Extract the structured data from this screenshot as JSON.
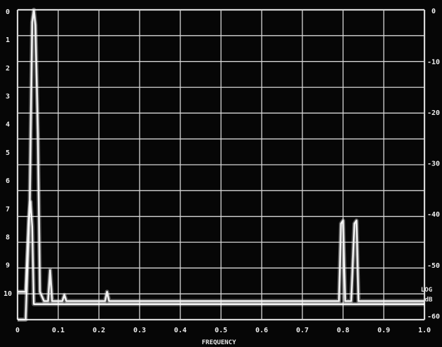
{
  "chart_data": {
    "type": "line",
    "title": "",
    "xlabel": "FREQUENCY",
    "ylabel": "",
    "x_ticks": [
      "0",
      "0.1",
      "0.2",
      "0.3",
      "0.4",
      "0.5",
      "0.6",
      "0.7",
      "0.8",
      "0.9",
      "1.0"
    ],
    "y_left_ticks": [
      "0",
      "1",
      "2",
      "3",
      "4",
      "5",
      "6",
      "7",
      "8",
      "9",
      "10"
    ],
    "y_right_ticks": [
      "0",
      "-10",
      "-20",
      "-30",
      "-40",
      "-50",
      "-60"
    ],
    "right_axis_label": [
      "LOG",
      "dB"
    ],
    "xlim": [
      0,
      1.0
    ],
    "ylim_left": [
      0,
      10
    ],
    "ylim_right_db": [
      -60,
      0
    ],
    "grid": true,
    "series": [
      {
        "color": "#f2f2f2",
        "points": [
          [
            0.0,
            0.9
          ],
          [
            0.02,
            0.9
          ],
          [
            0.03,
            3.8
          ],
          [
            0.036,
            9.6
          ],
          [
            0.04,
            10.0
          ],
          [
            0.044,
            9.5
          ],
          [
            0.05,
            6.0
          ],
          [
            0.055,
            0.9
          ],
          [
            0.065,
            0.6
          ],
          [
            0.075,
            0.6
          ],
          [
            0.08,
            1.6
          ],
          [
            0.085,
            0.6
          ],
          [
            0.1,
            0.6
          ],
          [
            0.11,
            0.6
          ],
          [
            0.115,
            0.8
          ],
          [
            0.12,
            0.6
          ],
          [
            0.14,
            0.6
          ],
          [
            0.16,
            0.6
          ],
          [
            0.2,
            0.6
          ],
          [
            0.215,
            0.6
          ],
          [
            0.22,
            0.9
          ],
          [
            0.225,
            0.6
          ],
          [
            0.3,
            0.6
          ],
          [
            0.4,
            0.6
          ],
          [
            0.5,
            0.6
          ],
          [
            0.6,
            0.6
          ],
          [
            0.7,
            0.6
          ],
          [
            0.79,
            0.6
          ],
          [
            0.795,
            3.1
          ],
          [
            0.8,
            3.2
          ],
          [
            0.805,
            0.6
          ],
          [
            0.82,
            0.6
          ],
          [
            0.828,
            3.1
          ],
          [
            0.833,
            3.2
          ],
          [
            0.838,
            0.6
          ],
          [
            0.9,
            0.6
          ],
          [
            1.0,
            0.6
          ]
        ]
      },
      {
        "color": "#ffffff",
        "points": [
          [
            0.0,
            0.0
          ],
          [
            0.02,
            0.0
          ],
          [
            0.028,
            3.2
          ],
          [
            0.032,
            3.8
          ],
          [
            0.036,
            3.0
          ],
          [
            0.04,
            0.5
          ],
          [
            0.05,
            0.5
          ],
          [
            0.08,
            0.5
          ],
          [
            0.2,
            0.5
          ],
          [
            0.4,
            0.5
          ],
          [
            0.6,
            0.5
          ],
          [
            0.8,
            0.5
          ],
          [
            1.0,
            0.5
          ]
        ]
      }
    ]
  }
}
